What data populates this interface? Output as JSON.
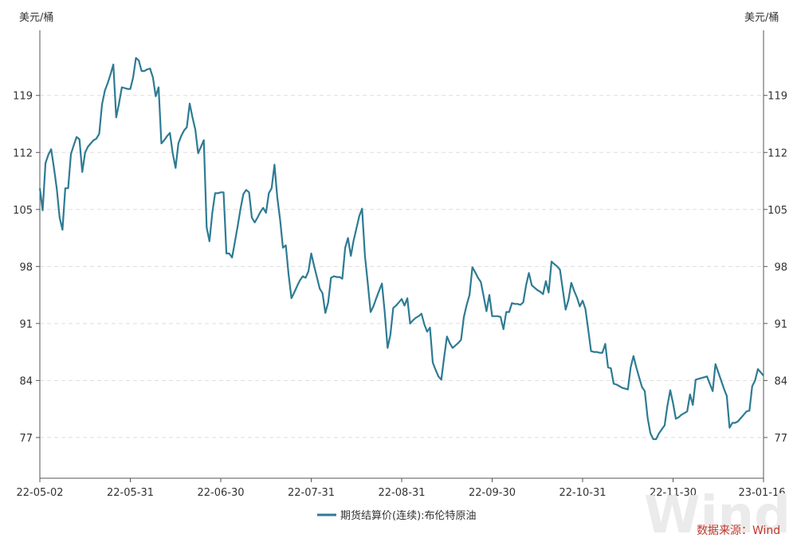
{
  "chart_data": {
    "type": "line",
    "unit_left": "美元/桶",
    "unit_right": "美元/桶",
    "yticks": [
      77,
      84,
      91,
      98,
      105,
      112,
      119
    ],
    "ylim": [
      72,
      127
    ],
    "xticks": [
      "22-05-02",
      "22-05-31",
      "22-06-30",
      "22-07-31",
      "22-08-31",
      "22-09-30",
      "22-10-31",
      "22-11-30",
      "23-01-16"
    ],
    "grid": true,
    "legend_position": "bottom-center",
    "series": [
      {
        "name": "期货结算价(连续):布伦特原油",
        "color": "#2e7b93",
        "values": [
          107.6,
          104.9,
          110.7,
          111.7,
          112.4,
          110.1,
          107.5,
          104.0,
          102.5,
          107.6,
          107.6,
          111.8,
          112.9,
          113.9,
          113.6,
          109.6,
          112.0,
          112.7,
          113.1,
          113.5,
          113.7,
          114.3,
          117.9,
          119.6,
          120.5,
          121.6,
          122.8,
          116.3,
          118.0,
          120.0,
          119.9,
          119.8,
          119.8,
          121.2,
          123.6,
          123.3,
          122.0,
          122.0,
          122.2,
          122.3,
          121.2,
          118.9,
          120.0,
          113.1,
          113.5,
          114.0,
          114.4,
          111.9,
          110.1,
          113.1,
          114.0,
          114.7,
          115.1,
          118.0,
          116.3,
          114.8,
          111.9,
          112.7,
          113.5,
          102.8,
          101.1,
          104.6,
          107.0,
          107.0,
          107.1,
          107.1,
          99.6,
          99.6,
          99.1,
          101.0,
          103.0,
          105.1,
          106.9,
          107.4,
          107.1,
          104.0,
          103.4,
          104.0,
          104.7,
          105.2,
          104.6,
          107.0,
          107.6,
          110.5,
          106.5,
          103.7,
          100.3,
          100.6,
          97.0,
          94.1,
          94.8,
          95.6,
          96.3,
          96.8,
          96.6,
          97.4,
          99.6,
          98.1,
          96.7,
          95.3,
          94.7,
          92.3,
          93.6,
          96.6,
          96.8,
          96.7,
          96.7,
          96.5,
          100.3,
          101.5,
          99.3,
          101.2,
          102.7,
          104.2,
          105.1,
          99.3,
          96.0,
          92.4,
          93.1,
          94.1,
          95.0,
          95.9,
          92.4,
          88.0,
          89.6,
          92.9,
          93.2,
          93.6,
          94.0,
          93.2,
          94.1,
          91.0,
          91.4,
          91.7,
          91.9,
          92.2,
          90.9,
          90.0,
          90.5,
          86.2,
          85.3,
          84.5,
          84.1,
          86.8,
          89.4,
          88.6,
          88.0,
          88.3,
          88.6,
          89.0,
          91.8,
          93.3,
          94.5,
          97.9,
          97.3,
          96.6,
          96.1,
          94.3,
          92.5,
          94.5,
          91.9,
          91.9,
          91.9,
          91.8,
          90.3,
          92.4,
          92.4,
          93.5,
          93.4,
          93.4,
          93.3,
          93.6,
          95.7,
          97.2,
          95.7,
          95.4,
          95.1,
          94.9,
          94.6,
          96.2,
          94.8,
          98.6,
          98.3,
          98.0,
          97.6,
          95.1,
          92.7,
          93.9,
          96.0,
          95.0,
          94.2,
          93.1,
          93.8,
          92.8,
          90.2,
          87.6,
          87.5,
          87.5,
          87.4,
          87.4,
          88.5,
          85.6,
          85.5,
          83.6,
          83.5,
          83.3,
          83.1,
          83.0,
          82.9,
          85.6,
          87.0,
          85.6,
          84.4,
          83.2,
          82.7,
          79.4,
          77.5,
          76.8,
          76.8,
          77.5,
          78.0,
          78.5,
          80.9,
          82.8,
          81.2,
          79.3,
          79.5,
          79.8,
          80.0,
          80.2,
          82.3,
          81.0,
          84.1,
          84.2,
          84.3,
          84.4,
          84.5,
          83.6,
          82.7,
          86.0,
          85.0,
          84.0,
          83.0,
          82.1,
          78.2,
          78.8,
          78.8,
          79.0,
          79.4,
          79.8,
          80.2,
          80.3,
          83.3,
          84.0,
          85.4,
          85.0,
          84.6
        ]
      }
    ],
    "source": "数据来源：Wind",
    "watermark": "Wind"
  }
}
